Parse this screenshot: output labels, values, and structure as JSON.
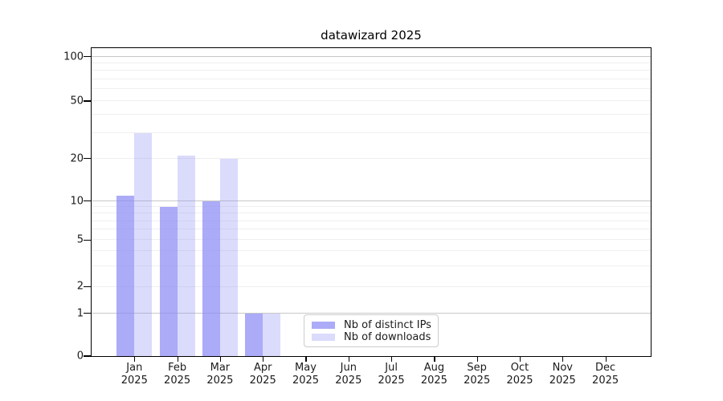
{
  "chart_data": {
    "type": "bar",
    "title": "datawizard 2025",
    "x_tick_labels": [
      [
        "Jan",
        "2025"
      ],
      [
        "Feb",
        "2025"
      ],
      [
        "Mar",
        "2025"
      ],
      [
        "Apr",
        "2025"
      ],
      [
        "May",
        "2025"
      ],
      [
        "Jun",
        "2025"
      ],
      [
        "Jul",
        "2025"
      ],
      [
        "Aug",
        "2025"
      ],
      [
        "Sep",
        "2025"
      ],
      [
        "Oct",
        "2025"
      ],
      [
        "Nov",
        "2025"
      ],
      [
        "Dec",
        "2025"
      ]
    ],
    "series": [
      {
        "name": "Nb of distinct IPs",
        "color": "rgba(136,136,245,0.71)",
        "values": [
          11,
          9,
          10,
          1,
          0,
          0,
          0,
          0,
          0,
          0,
          0,
          0
        ]
      },
      {
        "name": "Nb of downloads",
        "color": "rgba(136,136,245,0.30)",
        "values": [
          30,
          21,
          20,
          1,
          0,
          0,
          0,
          0,
          0,
          0,
          0,
          0
        ]
      }
    ],
    "y_axis": {
      "ticks": [
        0,
        1,
        2,
        5,
        10,
        20,
        50,
        100
      ],
      "scale": "log-like (linear 0-1, logarithmic above)",
      "major_gridlines": [
        1,
        10,
        100
      ],
      "minor_gridlines": [
        2,
        3,
        4,
        5,
        6,
        7,
        8,
        9,
        20,
        30,
        40,
        50,
        60,
        70,
        80,
        90
      ]
    },
    "legend": {
      "position": "lower center"
    },
    "colors": {
      "distinct_ips_bar": "rgba(136,136,245,0.71)",
      "downloads_bar": "rgba(136,136,245,0.30)",
      "major_grid": "#c7c7c7",
      "minor_grid": "#efefef",
      "axis": "#000000",
      "legend_border": "#cccccc"
    }
  }
}
